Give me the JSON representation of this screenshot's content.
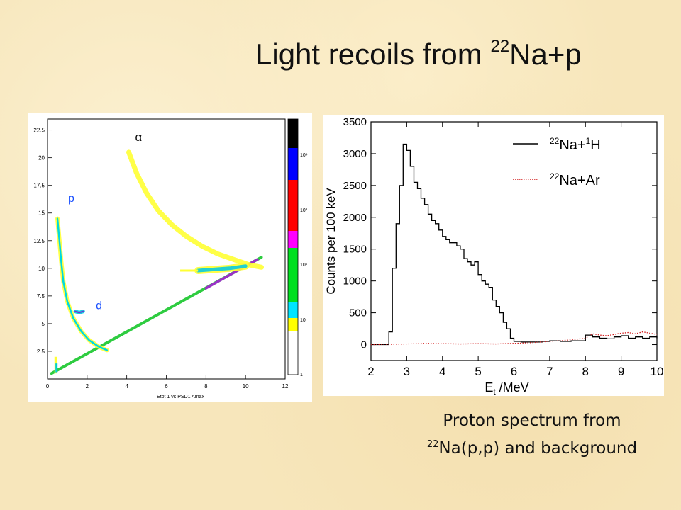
{
  "title": {
    "text": "Light recoils from ",
    "sup": "22",
    "rest": "Na+p"
  },
  "caption": {
    "line1": "Proton spectrum from",
    "sup": "22",
    "line2_rest": "Na(p,p) and background"
  },
  "chart_data": [
    {
      "type": "heatmap",
      "xlabel": "Etot 1 vs PSD1 Amax",
      "x_ticks": [
        "0",
        "2",
        "4",
        "6",
        "8",
        "10",
        "12"
      ],
      "y_ticks": [
        "2.5",
        "5",
        "7.5",
        "10",
        "12.5",
        "15",
        "17.5",
        "20",
        "22.5"
      ],
      "xlim": [
        0,
        12
      ],
      "ylim": [
        0,
        23.5
      ],
      "annotations": [
        {
          "text": "α",
          "x": 4.6,
          "y": 21.5
        },
        {
          "text": "p",
          "x": 1.2,
          "y": 16.0
        },
        {
          "text": "d",
          "x": 2.6,
          "y": 6.3
        }
      ],
      "colorbar": {
        "labels": [
          "1",
          "10",
          "10²",
          "10³",
          "10⁴"
        ],
        "colors": [
          "#ffff00",
          "#00e5ff",
          "#00e020",
          "#ff00ff",
          "#ff0000",
          "#0000ff",
          "#000000"
        ]
      },
      "bands": [
        {
          "name": "alpha",
          "points": [
            [
              4.1,
              20.5
            ],
            [
              4.5,
              18.6
            ],
            [
              5.0,
              16.8
            ],
            [
              5.6,
              15.2
            ],
            [
              6.3,
              13.9
            ],
            [
              7.0,
              12.9
            ],
            [
              7.8,
              12.0
            ],
            [
              8.6,
              11.3
            ],
            [
              9.4,
              10.8
            ],
            [
              10.2,
              10.3
            ],
            [
              10.8,
              10.1
            ]
          ]
        },
        {
          "name": "proton",
          "points": [
            [
              0.5,
              14.5
            ],
            [
              0.6,
              12.5
            ],
            [
              0.7,
              10.5
            ],
            [
              0.8,
              8.8
            ],
            [
              1.0,
              7.0
            ],
            [
              1.3,
              5.5
            ],
            [
              1.7,
              4.3
            ],
            [
              2.1,
              3.5
            ],
            [
              2.6,
              2.9
            ],
            [
              3.0,
              2.6
            ]
          ]
        },
        {
          "name": "deuteron",
          "points": [
            [
              1.4,
              6.1
            ],
            [
              1.6,
              6.0
            ],
            [
              1.8,
              6.1
            ]
          ]
        },
        {
          "name": "horizontal",
          "points": [
            [
              7.6,
              9.8
            ],
            [
              8.4,
              9.9
            ],
            [
              9.2,
              10.0
            ],
            [
              10.0,
              10.2
            ]
          ]
        },
        {
          "name": "diagonal",
          "points": [
            [
              0.2,
              0.5
            ],
            [
              10.8,
              11.0
            ]
          ]
        }
      ]
    },
    {
      "type": "line",
      "xlabel": "E",
      "xlabel_sub": "t",
      "xlabel_rest": " /MeV",
      "ylabel": "Counts per 100 keV",
      "xlim": [
        2,
        10
      ],
      "ylim": [
        -250,
        3500
      ],
      "x_ticks": [
        "2",
        "3",
        "4",
        "5",
        "6",
        "7",
        "8",
        "9",
        "10"
      ],
      "y_ticks": [
        "0",
        "500",
        "1000",
        "1500",
        "2000",
        "2500",
        "3000",
        "3500"
      ],
      "legend": [
        {
          "pre_sup": "22",
          "mid": "Na+",
          "sup2": "1",
          "post": "H",
          "style": "solid"
        },
        {
          "pre_sup": "22",
          "mid": "Na+Ar",
          "sup2": "",
          "post": "",
          "style": "dotted"
        }
      ],
      "series": [
        {
          "style": "solid",
          "color": "#000000",
          "x": [
            2.0,
            2.4,
            2.5,
            2.6,
            2.7,
            2.8,
            2.9,
            3.0,
            3.1,
            3.2,
            3.3,
            3.4,
            3.5,
            3.6,
            3.7,
            3.8,
            3.9,
            4.0,
            4.1,
            4.2,
            4.3,
            4.4,
            4.5,
            4.6,
            4.7,
            4.8,
            4.9,
            5.0,
            5.1,
            5.2,
            5.3,
            5.4,
            5.5,
            5.6,
            5.7,
            5.8,
            5.9,
            6.0,
            6.2,
            6.5,
            6.8,
            7.0,
            7.3,
            7.6,
            7.8,
            8.0,
            8.2,
            8.4,
            8.6,
            8.8,
            9.0,
            9.2,
            9.4,
            9.6,
            9.8,
            10.0
          ],
          "y": [
            0,
            0,
            200,
            1200,
            1900,
            2500,
            3150,
            3050,
            2800,
            2550,
            2450,
            2300,
            2200,
            2050,
            1950,
            1900,
            1800,
            1700,
            1650,
            1600,
            1600,
            1550,
            1500,
            1350,
            1300,
            1250,
            1300,
            1100,
            1000,
            950,
            900,
            700,
            600,
            500,
            350,
            250,
            100,
            50,
            40,
            40,
            50,
            60,
            50,
            60,
            60,
            150,
            120,
            100,
            90,
            120,
            140,
            100,
            120,
            100,
            120,
            100
          ]
        },
        {
          "style": "dotted",
          "color": "#d42020",
          "x": [
            2.0,
            2.5,
            3.0,
            3.5,
            4.0,
            4.5,
            5.0,
            5.5,
            6.0,
            6.5,
            7.0,
            7.5,
            8.0,
            8.2,
            8.4,
            8.6,
            8.8,
            9.0,
            9.2,
            9.4,
            9.6,
            9.8,
            10.0
          ],
          "y": [
            0,
            5,
            10,
            20,
            15,
            10,
            15,
            10,
            20,
            30,
            50,
            70,
            100,
            170,
            150,
            140,
            160,
            180,
            190,
            170,
            200,
            180,
            160
          ]
        }
      ]
    }
  ]
}
